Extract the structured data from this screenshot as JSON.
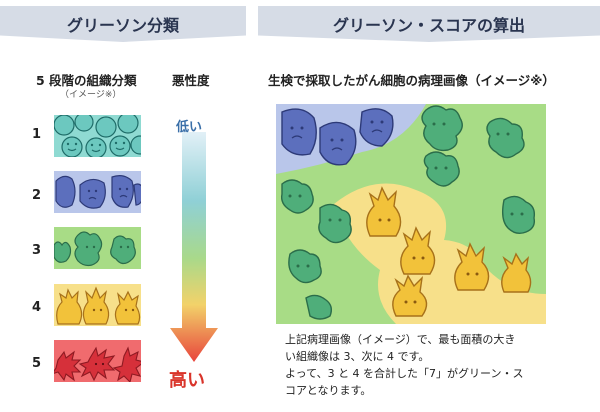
{
  "left_banner": {
    "title": "グリーソン分類"
  },
  "right_banner": {
    "title": "グリーソン・スコアの算出"
  },
  "left": {
    "grades_heading": "5 段階の組織分類",
    "grades_sub": "（イメージ※）",
    "severity_heading": "悪性度",
    "low_label": "低い",
    "high_label": "高い",
    "grades": [
      {
        "number": "1",
        "color": "#73d0c7"
      },
      {
        "number": "2",
        "color": "#a9b8e0"
      },
      {
        "number": "3",
        "color": "#9ed77e"
      },
      {
        "number": "4",
        "color": "#f6dd79"
      },
      {
        "number": "5",
        "color": "#e8525a"
      }
    ]
  },
  "right": {
    "image_heading": "生検で採取したがん細胞の病理画像（イメージ※）",
    "description_lines": [
      "上記病理画像（イメージ）で、最も面積の大き",
      "い組織像は 3、次に 4 です。",
      "よって、3 と 4 を合計した「7」がグリーン・ス",
      "コアとなります。"
    ]
  },
  "colors": {
    "banner_bg": "#d6dce6",
    "low_text": "#3a6fa8",
    "high_text": "#d9342a"
  }
}
